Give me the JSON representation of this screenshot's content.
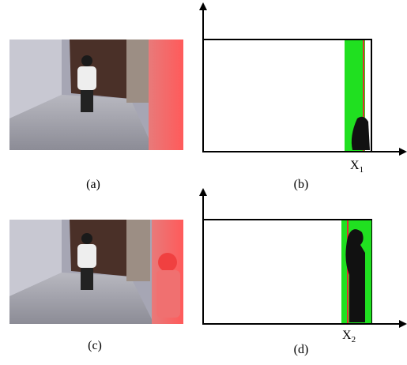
{
  "panels": [
    {
      "label": "(a)"
    },
    {
      "label": "(b)",
      "axis_mark": {
        "text": "X",
        "subscript": "1"
      }
    },
    {
      "label": "(c)"
    },
    {
      "label": "(d)",
      "axis_mark": {
        "text": "X",
        "subscript": "2"
      }
    }
  ]
}
